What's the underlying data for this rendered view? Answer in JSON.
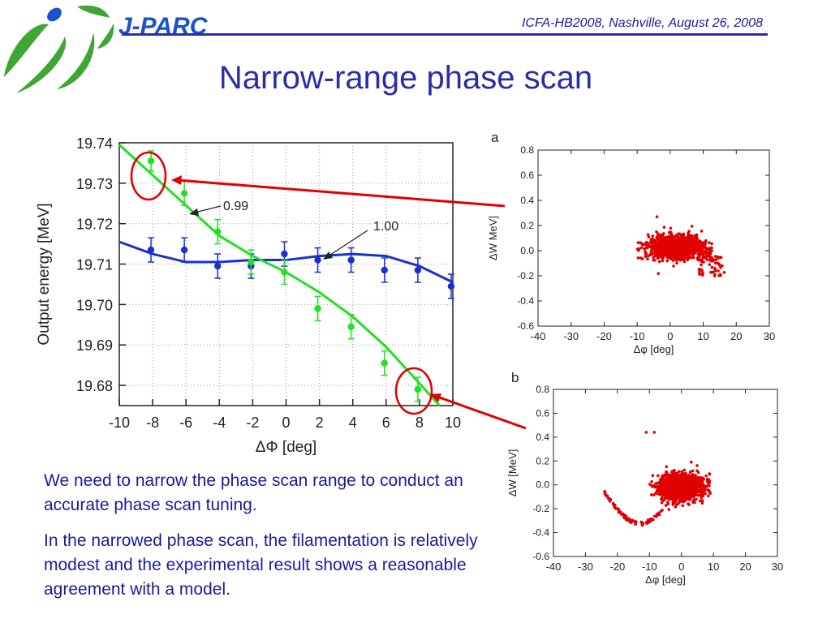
{
  "header": {
    "logo_text": "J-PARC",
    "conference": "ICFA-HB2008, Nashville, August 26, 2008"
  },
  "title": "Narrow-range phase scan",
  "paragraphs": [
    "We need to narrow the phase scan range to conduct an accurate phase scan tuning.",
    "In the narrowed phase scan, the filamentation is relatively modest and the experimental result shows a reasonable agreement with a model."
  ],
  "colors": {
    "blue_series": "#1a2fd0",
    "green_series": "#22e022",
    "red": "#e00000",
    "logo_blue": "#1a52c8",
    "logo_green": "#3fa535"
  },
  "chart_data": [
    {
      "type": "scatter",
      "xlabel": "ΔΦ [deg]",
      "ylabel": "Output energy [MeV]",
      "xlim": [
        -10,
        10
      ],
      "ylim": [
        19.675,
        19.74
      ],
      "xticks": [
        -10,
        -8,
        -6,
        -4,
        -2,
        0,
        2,
        4,
        6,
        8,
        10
      ],
      "yticks": [
        19.68,
        19.69,
        19.7,
        19.71,
        19.72,
        19.73,
        19.74
      ],
      "annotations": [
        "0.99",
        "1.00"
      ],
      "series": [
        {
          "name": "1.00",
          "color": "#1a2fd0",
          "points": [
            {
              "x": -8.1,
              "y": 19.7135,
              "err": 0.003
            },
            {
              "x": -6.1,
              "y": 19.7135,
              "err": 0.003
            },
            {
              "x": -4.1,
              "y": 19.7095,
              "err": 0.003
            },
            {
              "x": -2.1,
              "y": 19.7095,
              "err": 0.003
            },
            {
              "x": -0.1,
              "y": 19.7125,
              "err": 0.003
            },
            {
              "x": 1.9,
              "y": 19.711,
              "err": 0.003
            },
            {
              "x": 3.9,
              "y": 19.711,
              "err": 0.003
            },
            {
              "x": 5.9,
              "y": 19.7085,
              "err": 0.003
            },
            {
              "x": 7.9,
              "y": 19.7085,
              "err": 0.003
            },
            {
              "x": 9.9,
              "y": 19.7045,
              "err": 0.003
            }
          ],
          "model": [
            [
              -10,
              19.7155
            ],
            [
              -8,
              19.7125
            ],
            [
              -6,
              19.7105
            ],
            [
              -4,
              19.7105
            ],
            [
              -2,
              19.711
            ],
            [
              0,
              19.711
            ],
            [
              2,
              19.712
            ],
            [
              4,
              19.7125
            ],
            [
              6,
              19.712
            ],
            [
              8,
              19.7095
            ],
            [
              10,
              19.7055
            ]
          ]
        },
        {
          "name": "0.99",
          "color": "#22e022",
          "points": [
            {
              "x": -8.1,
              "y": 19.7355,
              "err": 0.0025
            },
            {
              "x": -6.1,
              "y": 19.7275,
              "err": 0.003
            },
            {
              "x": -4.1,
              "y": 19.718,
              "err": 0.003
            },
            {
              "x": -2.1,
              "y": 19.7105,
              "err": 0.003
            },
            {
              "x": -0.1,
              "y": 19.708,
              "err": 0.003
            },
            {
              "x": 1.9,
              "y": 19.699,
              "err": 0.003
            },
            {
              "x": 3.9,
              "y": 19.6945,
              "err": 0.003
            },
            {
              "x": 5.9,
              "y": 19.6855,
              "err": 0.003
            },
            {
              "x": 7.9,
              "y": 19.679,
              "err": 0.003
            }
          ],
          "model": [
            [
              -10,
              19.7395
            ],
            [
              -8,
              19.732
            ],
            [
              -6,
              19.7245
            ],
            [
              -4,
              19.717
            ],
            [
              -2,
              19.712
            ],
            [
              0,
              19.708
            ],
            [
              2,
              19.703
            ],
            [
              4,
              19.697
            ],
            [
              6,
              19.6895
            ],
            [
              8,
              19.6805
            ],
            [
              9.2,
              19.675
            ]
          ]
        }
      ]
    },
    {
      "type": "scatter",
      "panel_label": "a",
      "xlabel": "Δφ [deg]",
      "ylabel": "ΔW MeV]",
      "xlim": [
        -40,
        30
      ],
      "ylim": [
        -0.6,
        0.8
      ],
      "xticks": [
        -40,
        -30,
        -20,
        -10,
        0,
        10,
        20,
        30
      ],
      "yticks": [
        -0.6,
        -0.4,
        -0.2,
        0.0,
        0.2,
        0.4,
        0.6,
        0.8
      ],
      "color": "#e00000"
    },
    {
      "type": "scatter",
      "panel_label": "b",
      "xlabel": "Δφ [deg]",
      "ylabel": "ΔW [MeV]",
      "xlim": [
        -40,
        30
      ],
      "ylim": [
        -0.6,
        0.8
      ],
      "xticks": [
        -40,
        -30,
        -20,
        -10,
        0,
        10,
        20,
        30
      ],
      "yticks": [
        -0.6,
        -0.4,
        -0.2,
        0.0,
        0.2,
        0.4,
        0.6,
        0.8
      ],
      "color": "#e00000"
    }
  ]
}
